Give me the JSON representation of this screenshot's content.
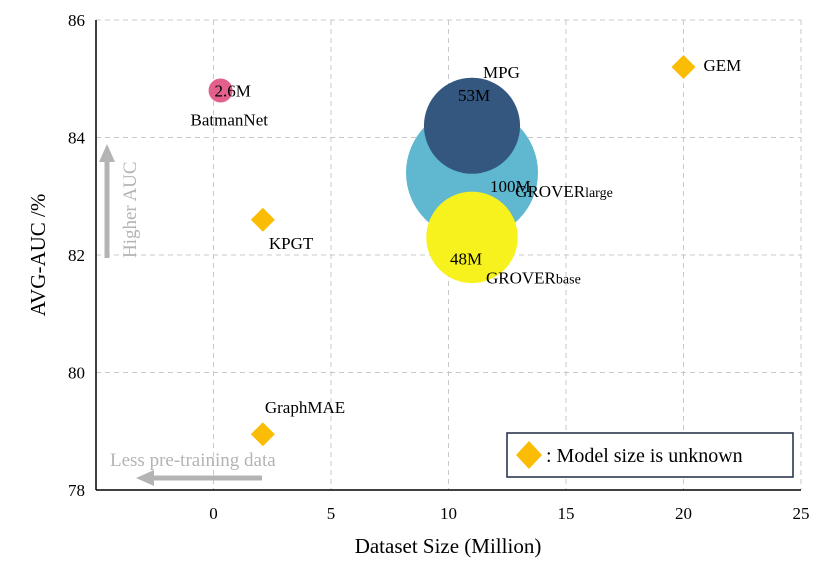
{
  "chart_data": {
    "type": "scatter",
    "xlabel": "Dataset Size (Million)",
    "ylabel": "AVG-AUC /%",
    "xlim": [
      -5,
      25
    ],
    "ylim": [
      78,
      86
    ],
    "xticks": [
      "0",
      "5",
      "10",
      "15",
      "20",
      "25"
    ],
    "yticks": [
      "78",
      "80",
      "82",
      "84",
      "86"
    ],
    "grid": true,
    "points": [
      {
        "name": "GROVER",
        "suffix": "large",
        "x": 11,
        "y": 83.4,
        "model_size": "100M",
        "size_m": 100,
        "color": "#5fb7d0"
      },
      {
        "name": "MPG",
        "suffix": "",
        "x": 11,
        "y": 84.2,
        "model_size": "53M",
        "size_m": 53,
        "color": "#34577f"
      },
      {
        "name": "GROVER",
        "suffix": "base",
        "x": 11,
        "y": 82.3,
        "model_size": "48M",
        "size_m": 48,
        "color": "#f7f11e"
      },
      {
        "name": "BatmanNet",
        "suffix": "",
        "x": 0.3,
        "y": 84.8,
        "model_size": "2.6M",
        "size_m": 2.6,
        "color": "#e2608b"
      },
      {
        "name": "KPGT",
        "suffix": "",
        "x": 2.1,
        "y": 82.6,
        "model_size": "",
        "size_m": null,
        "color": "#fbbc05"
      },
      {
        "name": "GraphMAE",
        "suffix": "",
        "x": 2.1,
        "y": 78.95,
        "model_size": "",
        "size_m": null,
        "color": "#fbbc05"
      },
      {
        "name": "GEM",
        "suffix": "",
        "x": 20,
        "y": 85.2,
        "model_size": "",
        "size_m": null,
        "color": "#fbbc05"
      }
    ],
    "legend": {
      "text": ": Model size is unknown",
      "placement": "bottom-right",
      "marker_color": "#fbbc05"
    },
    "annotations": {
      "higher": "Higher AUC",
      "less": "Less pre-training data"
    }
  }
}
